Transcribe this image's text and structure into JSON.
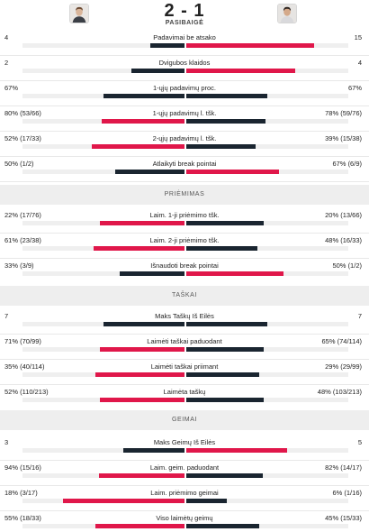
{
  "match": {
    "score": "2 - 1",
    "status": "PASIBAIGĖ"
  },
  "colors": {
    "dark": "#1a2530",
    "red": "#e0174a",
    "track": "#efefef"
  },
  "sections": [
    {
      "title": "",
      "rows": [
        {
          "label": "Padavimai be atsako",
          "left": "4",
          "right": "15",
          "lf": 0.21,
          "rf": 0.79,
          "lc": "dark",
          "rc": "red"
        },
        {
          "label": "Dvigubos klaidos",
          "left": "2",
          "right": "4",
          "lf": 0.33,
          "rf": 0.67,
          "lc": "dark",
          "rc": "red"
        },
        {
          "label": "1-ųjų padavimų proc.",
          "left": "67%",
          "right": "67%",
          "lf": 0.5,
          "rf": 0.5,
          "lc": "dark",
          "rc": "dark"
        },
        {
          "label": "1-ųjų padavimų l. tšk.",
          "left": "80% (53/66)",
          "right": "78% (59/76)",
          "lf": 0.51,
          "rf": 0.49,
          "lc": "red",
          "rc": "dark"
        },
        {
          "label": "2-ųjų padavimų l. tšk.",
          "left": "52% (17/33)",
          "right": "39% (15/38)",
          "lf": 0.57,
          "rf": 0.43,
          "lc": "red",
          "rc": "dark"
        },
        {
          "label": "Atlaikyti break pointai",
          "left": "50% (1/2)",
          "right": "67% (6/9)",
          "lf": 0.43,
          "rf": 0.57,
          "lc": "dark",
          "rc": "red"
        }
      ]
    },
    {
      "title": "PRIĖMIMAS",
      "rows": [
        {
          "label": "Laim. 1-ji priėmimo tšk.",
          "left": "22% (17/76)",
          "right": "20% (13/66)",
          "lf": 0.52,
          "rf": 0.48,
          "lc": "red",
          "rc": "dark"
        },
        {
          "label": "Laim. 2-ji priėmimo tšk.",
          "left": "61% (23/38)",
          "right": "48% (16/33)",
          "lf": 0.56,
          "rf": 0.44,
          "lc": "red",
          "rc": "dark"
        },
        {
          "label": "Išnaudoti break pointai",
          "left": "33% (3/9)",
          "right": "50% (1/2)",
          "lf": 0.4,
          "rf": 0.6,
          "lc": "dark",
          "rc": "red"
        }
      ]
    },
    {
      "title": "TAŠKAI",
      "rows": [
        {
          "label": "Maks Taškų Iš Eilės",
          "left": "7",
          "right": "7",
          "lf": 0.5,
          "rf": 0.5,
          "lc": "dark",
          "rc": "dark"
        },
        {
          "label": "Laimėti taškai paduodant",
          "left": "71% (70/99)",
          "right": "65% (74/114)",
          "lf": 0.52,
          "rf": 0.48,
          "lc": "red",
          "rc": "dark"
        },
        {
          "label": "Laimėti taškai priimant",
          "left": "35% (40/114)",
          "right": "29% (29/99)",
          "lf": 0.55,
          "rf": 0.45,
          "lc": "red",
          "rc": "dark"
        },
        {
          "label": "Laimėta taškų",
          "left": "52% (110/213)",
          "right": "48% (103/213)",
          "lf": 0.52,
          "rf": 0.48,
          "lc": "red",
          "rc": "dark"
        }
      ]
    },
    {
      "title": "GEIMAI",
      "rows": [
        {
          "label": "Maks Geimų Iš Eilės",
          "left": "3",
          "right": "5",
          "lf": 0.38,
          "rf": 0.62,
          "lc": "dark",
          "rc": "red"
        },
        {
          "label": "Laim. geim. paduodant",
          "left": "94% (15/16)",
          "right": "82% (14/17)",
          "lf": 0.53,
          "rf": 0.47,
          "lc": "red",
          "rc": "dark"
        },
        {
          "label": "Laim. priėmimo geimai",
          "left": "18% (3/17)",
          "right": "6% (1/16)",
          "lf": 0.75,
          "rf": 0.25,
          "lc": "red",
          "rc": "dark"
        },
        {
          "label": "Viso laimėtų geimų",
          "left": "55% (18/33)",
          "right": "45% (15/33)",
          "lf": 0.55,
          "rf": 0.45,
          "lc": "red",
          "rc": "dark"
        }
      ]
    }
  ]
}
